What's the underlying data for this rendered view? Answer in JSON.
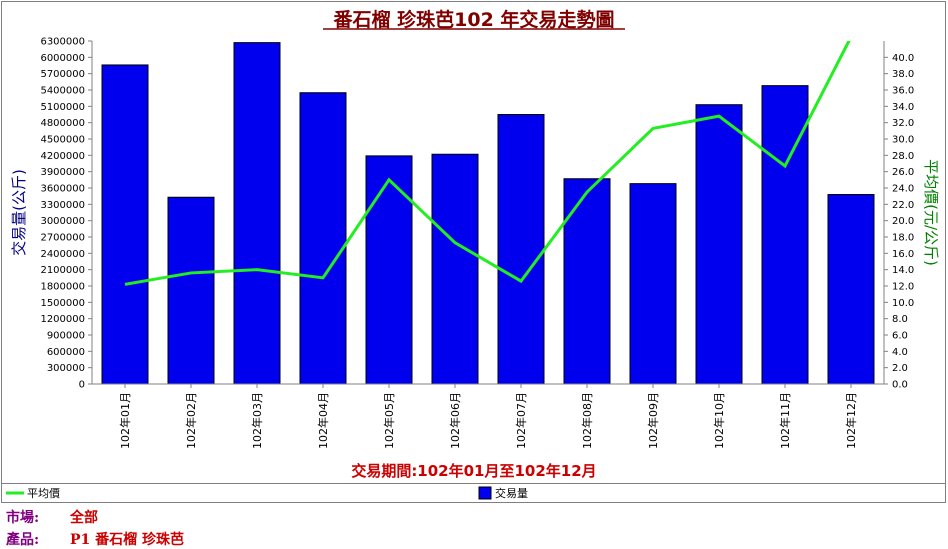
{
  "chart_data": {
    "type": "bar",
    "title": "番石榴  珍珠芭102 年交易走勢圖",
    "period_label": "交易期間:102年01月至102年12月",
    "categories": [
      "102年01月",
      "102年02月",
      "102年03月",
      "102年04月",
      "102年05月",
      "102年06月",
      "102年07月",
      "102年08月",
      "102年09月",
      "102年10月",
      "102年11月",
      "102年12月"
    ],
    "series": [
      {
        "name": "交易量",
        "axis": "left",
        "type": "bar",
        "color": "#0000ee",
        "values": [
          5860000,
          3430000,
          6270000,
          5350000,
          4190000,
          4220000,
          4950000,
          3770000,
          3680000,
          5130000,
          5480000,
          3480000
        ]
      },
      {
        "name": "平均價",
        "axis": "right",
        "type": "line",
        "color": "#22ee22",
        "values": [
          12.2,
          13.6,
          14.0,
          13.0,
          25.0,
          17.3,
          12.6,
          23.5,
          31.3,
          32.8,
          26.7,
          42.5
        ]
      }
    ],
    "ylabel": "交易量(公斤)",
    "y2label": "平均價(元/公斤)",
    "ylim": [
      0,
      6300000
    ],
    "y_ticks": [
      "0",
      "300000",
      "600000",
      "900000",
      "1200000",
      "1500000",
      "1800000",
      "2100000",
      "2400000",
      "2700000",
      "3000000",
      "3300000",
      "3600000",
      "3900000",
      "4200000",
      "4500000",
      "4800000",
      "5100000",
      "5400000",
      "5700000",
      "6000000",
      "6300000"
    ],
    "y2lim": [
      0,
      42.0
    ],
    "y2_ticks": [
      "0.0",
      "2.0",
      "4.0",
      "6.0",
      "8.0",
      "10.0",
      "12.0",
      "14.0",
      "16.0",
      "18.0",
      "20.0",
      "22.0",
      "24.0",
      "26.0",
      "28.0",
      "30.0",
      "32.0",
      "34.0",
      "36.0",
      "38.0",
      "40.0"
    ],
    "grid": false,
    "legend_position": "bottom"
  },
  "footer": {
    "market_label": "市場:",
    "market_value": "全部",
    "product_label": "產品:",
    "product_value": "P1 番石榴 珍珠芭"
  }
}
